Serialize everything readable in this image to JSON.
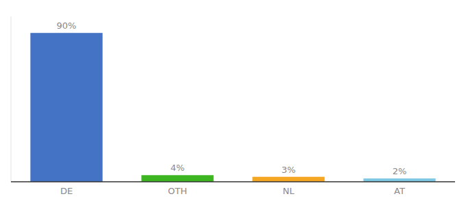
{
  "chart_data": {
    "type": "bar",
    "categories": [
      "DE",
      "OTH",
      "NL",
      "AT"
    ],
    "values": [
      90,
      4,
      3,
      2
    ],
    "value_labels": [
      "90%",
      "4%",
      "3%",
      "2%"
    ],
    "data_labels": true,
    "colors": [
      "#4472c4",
      "#3cb520",
      "#f5a623",
      "#7ec8e3"
    ],
    "ylim": [
      0,
      100
    ],
    "tick_labels": "x",
    "grid": false
  }
}
